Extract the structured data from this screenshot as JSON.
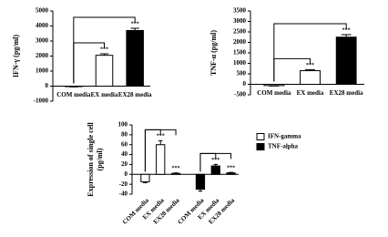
{
  "chart_data": [
    {
      "type": "bar",
      "ylabel": "IFN-γ (pg/ml)",
      "categories": [
        "COM media",
        "EX media",
        "EX28 media"
      ],
      "values": [
        -30,
        2050,
        3700
      ],
      "errors": [
        20,
        100,
        150
      ],
      "colors": [
        "#ffffff",
        "#ffffff",
        "#000000"
      ],
      "annotations": [
        null,
        "***",
        "***"
      ],
      "ylim": [
        -1000,
        5000
      ],
      "yticks": [
        -1000,
        0,
        1000,
        2000,
        3000,
        4000,
        5000
      ]
    },
    {
      "type": "bar",
      "ylabel": "TNF-α (pg/ml)",
      "categories": [
        "COM media",
        "EX media",
        "EX28 media"
      ],
      "values": [
        -60,
        650,
        2250
      ],
      "errors": [
        20,
        50,
        120
      ],
      "colors": [
        "#ffffff",
        "#ffffff",
        "#000000"
      ],
      "annotations": [
        null,
        "***",
        "***"
      ],
      "ylim": [
        -500,
        3500
      ],
      "yticks": [
        -500,
        0,
        500,
        1000,
        1500,
        2000,
        2500,
        3000,
        3500
      ]
    },
    {
      "type": "bar",
      "ylabel": [
        "Expression of single cell",
        "(pg/ml)"
      ],
      "categories": [
        "COM media",
        "EX media",
        "EX28 media",
        "COM media",
        "EX media",
        "EX28 media"
      ],
      "series": [
        {
          "name": "IFN-gamma",
          "color": "#ffffff",
          "values": [
            -15,
            60,
            2,
            null,
            null,
            null
          ],
          "errors": [
            2,
            8,
            1,
            null,
            null,
            null
          ]
        },
        {
          "name": "TNF-alpha",
          "color": "#000000",
          "values": [
            null,
            null,
            null,
            -30,
            17,
            3
          ],
          "errors": [
            null,
            null,
            null,
            4,
            3,
            1
          ]
        }
      ],
      "annotations": [
        null,
        "***",
        "***",
        null,
        "***",
        "***"
      ],
      "ylim": [
        -40,
        100
      ],
      "yticks": [
        -40,
        -20,
        0,
        20,
        40,
        60,
        80,
        100
      ]
    }
  ]
}
